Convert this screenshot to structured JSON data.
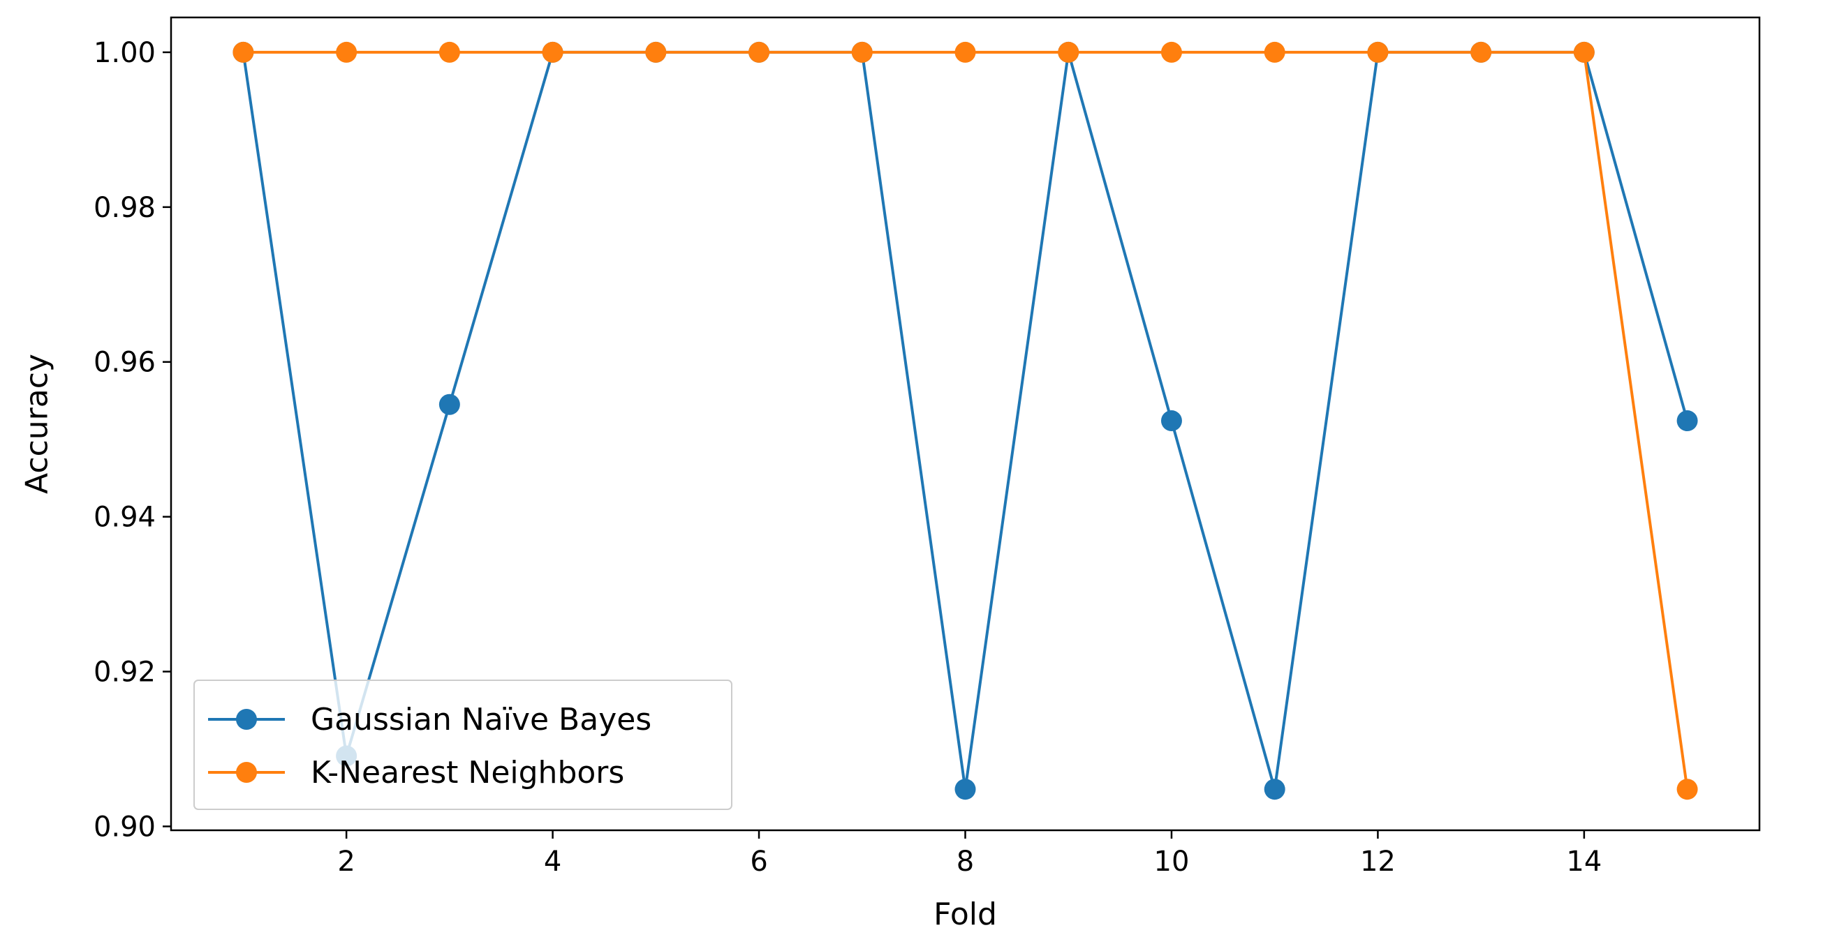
{
  "chart_data": {
    "type": "line",
    "xlabel": "Fold",
    "ylabel": "Accuracy",
    "xlim": [
      0.3,
      15.7
    ],
    "ylim": [
      0.8995,
      1.0045
    ],
    "x_ticks": [
      2,
      4,
      6,
      8,
      10,
      12,
      14
    ],
    "y_ticks": [
      0.9,
      0.92,
      0.94,
      0.96,
      0.98,
      1.0
    ],
    "x": [
      1,
      2,
      3,
      4,
      5,
      6,
      7,
      8,
      9,
      10,
      11,
      12,
      13,
      14,
      15
    ],
    "series": [
      {
        "name": "Gaussian Naïve Bayes",
        "color": "#1f77b4",
        "marker": "circle",
        "values": [
          1.0,
          0.9091,
          0.9545,
          1.0,
          1.0,
          1.0,
          1.0,
          0.9048,
          1.0,
          0.9524,
          0.9048,
          1.0,
          1.0,
          1.0,
          0.9524
        ]
      },
      {
        "name": "K-Nearest Neighbors",
        "color": "#ff7f0e",
        "marker": "circle",
        "values": [
          1.0,
          1.0,
          1.0,
          1.0,
          1.0,
          1.0,
          1.0,
          1.0,
          1.0,
          1.0,
          1.0,
          1.0,
          1.0,
          1.0,
          0.9048
        ]
      }
    ],
    "grid": false,
    "legend_position": "lower-left"
  }
}
